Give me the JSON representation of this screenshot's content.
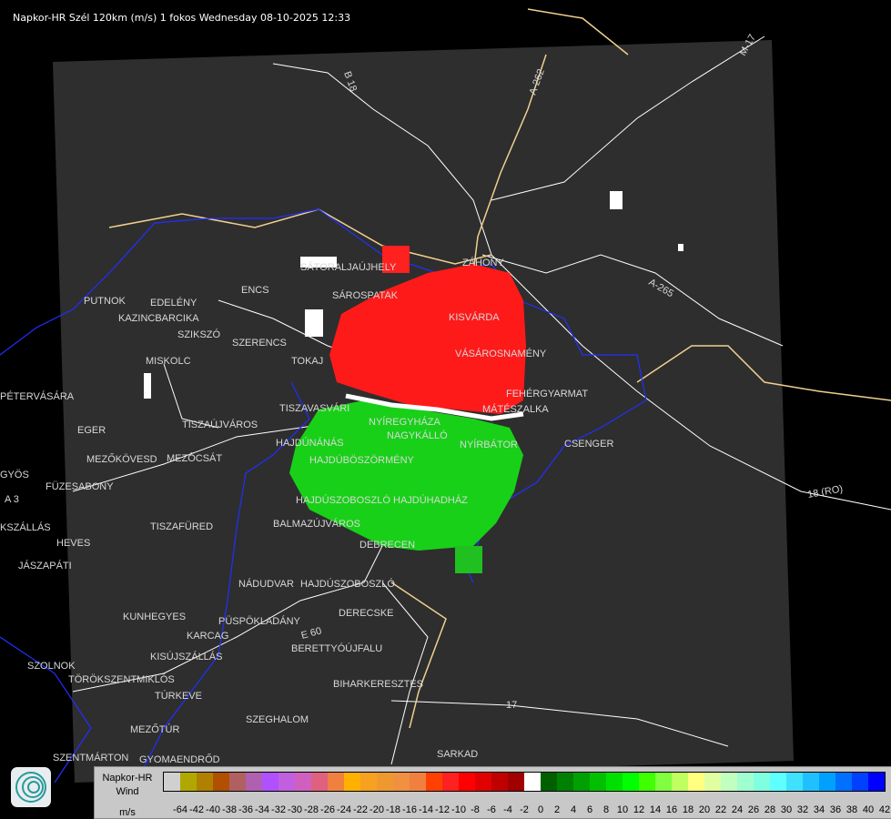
{
  "title": "Napkor-HR Szél 120km (m/s) 1 fokos Wednesday 08-10-2025 12:33",
  "legend": {
    "name_line1": "Napkor-HR",
    "name_line2": "Wind",
    "unit": "m/s",
    "labels": [
      "-64",
      "-42",
      "-40",
      "-38",
      "-36",
      "-34",
      "-32",
      "-30",
      "-28",
      "-26",
      "-24",
      "-22",
      "-20",
      "-18",
      "-16",
      "-14",
      "-12",
      "-10",
      "-8",
      "-6",
      "-4",
      "-2",
      "0",
      "2",
      "4",
      "6",
      "8",
      "10",
      "12",
      "14",
      "16",
      "18",
      "20",
      "22",
      "24",
      "26",
      "28",
      "30",
      "32",
      "34",
      "36",
      "38",
      "40",
      "42"
    ],
    "colors": [
      "#d0d0d0",
      "#b0a800",
      "#b08000",
      "#b05000",
      "#b06060",
      "#b060b0",
      "#b050ff",
      "#c060e0",
      "#d060c0",
      "#e06080",
      "#f08040",
      "#ffb000",
      "#f8a020",
      "#f09830",
      "#f09040",
      "#f08040",
      "#ff4000",
      "#ff2020",
      "#ff0000",
      "#e00000",
      "#c00000",
      "#a00000",
      "#ffffff",
      "#006000",
      "#008000",
      "#00a000",
      "#00c000",
      "#00e000",
      "#00ff00",
      "#40ff00",
      "#80ff40",
      "#c0ff60",
      "#ffff80",
      "#e0ffa0",
      "#c0ffc0",
      "#a0ffd0",
      "#80ffe0",
      "#60ffff",
      "#40e0ff",
      "#20c0ff",
      "#00a0ff",
      "#0070ff",
      "#0040ff",
      "#0000ff"
    ]
  },
  "map": {
    "cities": [
      "PUTNOK",
      "EDELÉNY",
      "KAZINCBARCIKA",
      "SZIKSZÓ",
      "ENCS",
      "SÁTORALJAÚJHELY",
      "SÁROSPATAK",
      "SZERENCS",
      "TOKAJ",
      "MISKOLC",
      "KISVÁRDA",
      "ZÁHONY",
      "VÁSÁROSNAMÉNY",
      "FEHÉRGYARMAT",
      "MÁTÉSZALKA",
      "PÉTERVÁSÁRA",
      "EGER",
      "TISZAÚJVÁROS",
      "TISZAVASVÁRI",
      "NYÍREGYHÁZA",
      "NAGYKÁLLÓ",
      "NYÍRBÁTOR",
      "CSENGER",
      "HAJDÚNÁNÁS",
      "HAJDÚBÖSZÖRMÉNY",
      "MEZŐKÖVESD",
      "MEZŐCSÁT",
      "GYÖS",
      "FÜZESABONY",
      "HAJDÚSZOBOSZLÓ",
      "HAJDÚHADHÁZ",
      "HEVES",
      "TISZAFÜRED",
      "BALMAZÚJVÁROS",
      "DEBRECEN",
      "JÁSZAPÁTI",
      "NÁDUDVAR",
      "HAJDÚSZOBOSZLÓ",
      "KUNHEGYES",
      "KARCAG",
      "KISÚJSZÁLLÁS",
      "PÜSPÖKLADÁNY",
      "DERECSKE",
      "BERETTYÓÚJFALU",
      "SZOLNOK",
      "TÖRÖKSZENTMIKLÓS",
      "TÚRKEVE",
      "BIHARKERESZTES",
      "SZEGHALOM",
      "MEZŐTÚR",
      "GYOMAENDRŐD",
      "SZENTMÁRTON",
      "KSZÁLLÁS",
      "SARKAD"
    ],
    "roads": [
      "B 18",
      "A-262",
      "M-17",
      "A-265",
      "18 (RO)",
      "17",
      "A 3",
      "E 60"
    ],
    "colors": {
      "background": "#2e2e2e",
      "roads": "#ffffff",
      "borders": "#2020ff",
      "rivers": "#3050d0",
      "major_roads": "#f0d090",
      "approaching": "#00ff00",
      "receding": "#ff0000"
    }
  }
}
